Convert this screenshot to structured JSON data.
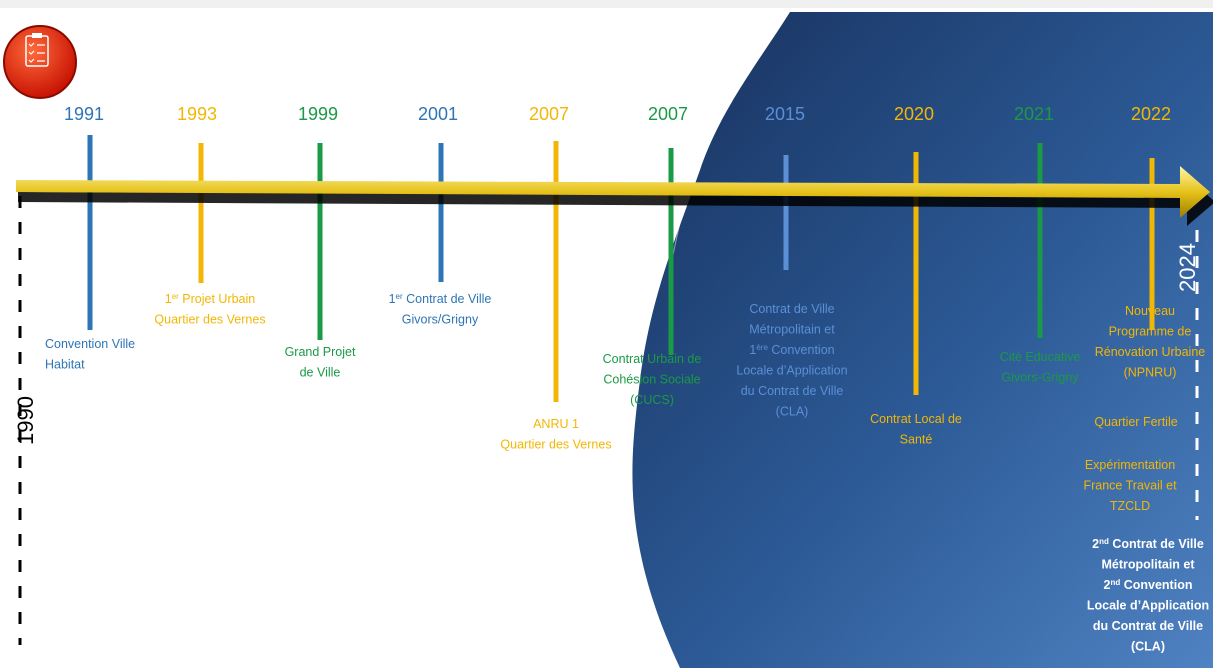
{
  "start_year": "1990",
  "end_year": "2024",
  "events": [
    {
      "year": "1991",
      "color": "#2e75b6",
      "blocks": [
        [
          [
            "Convention Ville"
          ],
          [
            "Habitat"
          ]
        ]
      ]
    },
    {
      "year": "1993",
      "color": "#f2b705",
      "blocks": [
        [
          [
            "1",
            {
              "sup": "er"
            },
            "  Projet Urbain"
          ],
          [
            "Quartier des Vernes"
          ]
        ]
      ]
    },
    {
      "year": "1999",
      "color": "#1a9a46",
      "blocks": [
        [
          [
            "Grand Projet"
          ],
          [
            "de Ville"
          ]
        ]
      ]
    },
    {
      "year": "2001",
      "color": "#2e75b6",
      "blocks": [
        [
          [
            "1",
            {
              "sup": "er"
            },
            " Contrat de Ville"
          ],
          [
            "Givors/Grigny"
          ]
        ]
      ]
    },
    {
      "year": "2007",
      "color": "#f2b705",
      "blocks": [
        [
          [
            "ANRU 1"
          ],
          [
            "Quartier des Vernes"
          ]
        ]
      ]
    },
    {
      "year": "2007",
      "color": "#1a9a46",
      "blocks": [
        [
          [
            "Contrat Urbain de"
          ],
          [
            "Cohésion Sociale"
          ],
          [
            "(CUCS)"
          ]
        ]
      ]
    },
    {
      "year": "2015",
      "color": "#5b8fd6",
      "blocks": [
        [
          [
            "Contrat de Ville"
          ],
          [
            "Métropolitain et"
          ],
          [
            "1",
            {
              "sup": "ère"
            },
            " Convention"
          ],
          [
            "Locale d’Application"
          ],
          [
            "du Contrat de Ville"
          ],
          [
            "(CLA)"
          ]
        ]
      ]
    },
    {
      "year": "2020",
      "color": "#f2b705",
      "blocks": [
        [
          [
            "Contrat Local de"
          ],
          [
            "Santé"
          ]
        ]
      ]
    },
    {
      "year": "2021",
      "color": "#1a9a46",
      "blocks": [
        [
          [
            "Cité Educative"
          ],
          [
            "Givors-Grigny"
          ]
        ]
      ]
    },
    {
      "year": "2022",
      "color": "#f2b705",
      "blocks": [
        [
          [
            "Nouveau"
          ],
          [
            "Programme de"
          ],
          [
            "Rénovation Urbaine"
          ],
          [
            "(NPNRU)"
          ]
        ],
        [
          [
            "Quartier Fertile"
          ]
        ],
        [
          [
            "Expérimentation"
          ],
          [
            "France Travail et"
          ],
          [
            "TZCLD"
          ]
        ],
        [
          [
            "2",
            {
              "sup": "nd"
            },
            " Contrat de Ville"
          ],
          [
            "Métropolitain et"
          ],
          [
            "2",
            {
              "sup": "nd"
            },
            " Convention"
          ],
          [
            "Locale d’Application"
          ],
          [
            "du Contrat de Ville"
          ],
          [
            "(CLA)"
          ]
        ]
      ]
    }
  ]
}
